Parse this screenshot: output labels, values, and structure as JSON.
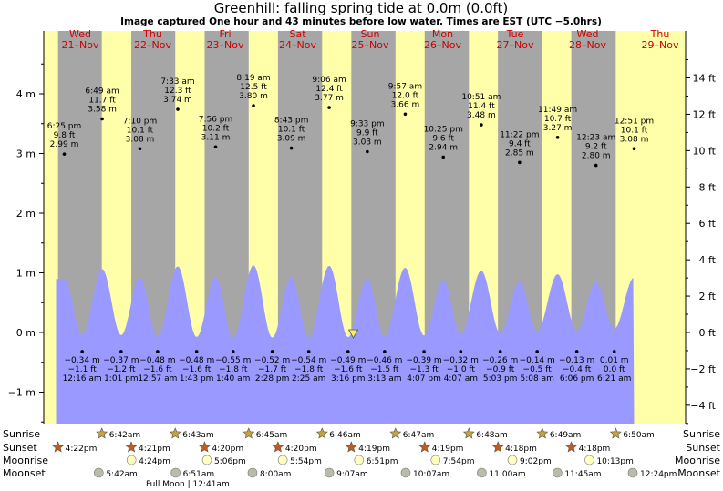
{
  "title": "Greenhill: falling  spring tide at 0.0m (0.0ft)",
  "subtitle": "Image captured One hour and 43 minutes before low water. Times are EST (UTC −5.0hrs)",
  "days": [
    {
      "dow": "Wed",
      "date": "21–Nov"
    },
    {
      "dow": "Thu",
      "date": "22–Nov"
    },
    {
      "dow": "Fri",
      "date": "23–Nov"
    },
    {
      "dow": "Sat",
      "date": "24–Nov"
    },
    {
      "dow": "Sun",
      "date": "25–Nov"
    },
    {
      "dow": "Mon",
      "date": "26–Nov"
    },
    {
      "dow": "Tue",
      "date": "27–Nov"
    },
    {
      "dow": "Wed",
      "date": "28–Nov"
    },
    {
      "dow": "Thu",
      "date": "29–Nov"
    }
  ],
  "axes": {
    "left_ticks": [
      "4 m",
      "3 m",
      "2 m",
      "1 m",
      "0 m",
      "−1 m"
    ],
    "left_values": [
      4,
      3,
      2,
      1,
      0,
      -1
    ],
    "right_ticks": [
      "14 ft",
      "12 ft",
      "10 ft",
      "8 ft",
      "6 ft",
      "4 ft",
      "2 ft",
      "0 ft",
      "−2 ft",
      "−4 ft"
    ],
    "right_values_ft": [
      14,
      12,
      10,
      8,
      6,
      4,
      2,
      0,
      -2,
      -4
    ],
    "ylim_m": [
      -1.5,
      4.7
    ]
  },
  "chart_data": {
    "type": "area",
    "title": "Greenhill: falling  spring tide at 0.0m (0.0ft)",
    "current_level_m": 0.0,
    "high_tides": [
      {
        "time": "6:25 pm",
        "ft": "9.8 ft",
        "m": 2.99,
        "label": "2.99 m"
      },
      {
        "time": "6:49 am",
        "ft": "11.7 ft",
        "m": 3.58,
        "label": "3.58 m"
      },
      {
        "time": "7:10 pm",
        "ft": "10.1 ft",
        "m": 3.08,
        "label": "3.08 m"
      },
      {
        "time": "7:33 am",
        "ft": "12.3 ft",
        "m": 3.74,
        "label": "3.74 m"
      },
      {
        "time": "7:56 pm",
        "ft": "10.2 ft",
        "m": 3.11,
        "label": "3.11 m"
      },
      {
        "time": "8:19 am",
        "ft": "12.5 ft",
        "m": 3.8,
        "label": "3.80 m"
      },
      {
        "time": "8:43 pm",
        "ft": "10.1 ft",
        "m": 3.09,
        "label": "3.09 m"
      },
      {
        "time": "9:06 am",
        "ft": "12.4 ft",
        "m": 3.77,
        "label": "3.77 m"
      },
      {
        "time": "9:33 pm",
        "ft": "9.9 ft",
        "m": 3.03,
        "label": "3.03 m"
      },
      {
        "time": "9:57 am",
        "ft": "12.0 ft",
        "m": 3.66,
        "label": "3.66 m"
      },
      {
        "time": "10:25 pm",
        "ft": "9.6 ft",
        "m": 2.94,
        "label": "2.94 m"
      },
      {
        "time": "10:51 am",
        "ft": "11.4 ft",
        "m": 3.48,
        "label": "3.48 m"
      },
      {
        "time": "11:22 pm",
        "ft": "9.4 ft",
        "m": 2.85,
        "label": "2.85 m"
      },
      {
        "time": "11:49 am",
        "ft": "10.7 ft",
        "m": 3.27,
        "label": "3.27 m"
      },
      {
        "time": "12:23 am",
        "ft": "9.2 ft",
        "m": 2.8,
        "label": "2.80 m"
      },
      {
        "time": "12:51 pm",
        "ft": "10.1 ft",
        "m": 3.08,
        "label": "3.08 m"
      }
    ],
    "low_tides": [
      {
        "m": -0.34,
        "label": "−0.34 m",
        "ft": "−1.1 ft",
        "time": "12:16 am"
      },
      {
        "m": -0.37,
        "label": "−0.37 m",
        "ft": "−1.2 ft",
        "time": "1:01 pm"
      },
      {
        "m": -0.48,
        "label": "−0.48 m",
        "ft": "−1.6 ft",
        "time": "12:57 am"
      },
      {
        "m": -0.48,
        "label": "−0.48 m",
        "ft": "−1.6 ft",
        "time": "1:43 pm"
      },
      {
        "m": -0.55,
        "label": "−0.55 m",
        "ft": "−1.8 ft",
        "time": "1:40 am"
      },
      {
        "m": -0.52,
        "label": "−0.52 m",
        "ft": "−1.7 ft",
        "time": "2:28 pm"
      },
      {
        "m": -0.54,
        "label": "−0.54 m",
        "ft": "−1.8 ft",
        "time": "2:25 am"
      },
      {
        "m": -0.49,
        "label": "−0.49 m",
        "ft": "−1.6 ft",
        "time": "3:16 pm"
      },
      {
        "m": -0.46,
        "label": "−0.46 m",
        "ft": "−1.5 ft",
        "time": "3:13 am"
      },
      {
        "m": -0.39,
        "label": "−0.39 m",
        "ft": "−1.3 ft",
        "time": "4:07 pm"
      },
      {
        "m": -0.32,
        "label": "−0.32 m",
        "ft": "−1.0 ft",
        "time": "4:07 am"
      },
      {
        "m": -0.26,
        "label": "−0.26 m",
        "ft": "−0.9 ft",
        "time": "5:03 pm"
      },
      {
        "m": -0.14,
        "label": "−0.14 m",
        "ft": "−0.5 ft",
        "time": "5:08 am"
      },
      {
        "m": -0.13,
        "label": "−0.13 m",
        "ft": "−0.4 ft",
        "time": "6:06 pm"
      },
      {
        "m": 0.01,
        "label": "0.01 m",
        "ft": "0.0 ft",
        "time": "6:21 am"
      }
    ]
  },
  "rows": {
    "sunrise_label": "Sunrise",
    "sunset_label": "Sunset",
    "moonrise_label": "Moonrise",
    "moonset_label": "Moonset",
    "sunrise": [
      "6:42am",
      "6:43am",
      "6:45am",
      "6:46am",
      "6:47am",
      "6:48am",
      "6:49am",
      "6:50am"
    ],
    "sunset": [
      "4:22pm",
      "4:21pm",
      "4:20pm",
      "4:20pm",
      "4:19pm",
      "4:19pm",
      "4:18pm",
      "4:18pm"
    ],
    "moonrise": [
      "4:24pm",
      "5:06pm",
      "5:54pm",
      "6:51pm",
      "7:54pm",
      "9:02pm",
      "10:13pm"
    ],
    "moonset": [
      "5:42am",
      "6:51am",
      "8:00am",
      "9:07am",
      "10:07am",
      "11:00am",
      "11:45am",
      "12:24pm"
    ],
    "moon_phase": "Full Moon | 12:41am"
  },
  "colors": {
    "day": "#ffffaa",
    "night": "#a6a6a6",
    "water": "#9999ff",
    "day_label": "#cc0000",
    "sun_star": "#c7a33a",
    "sunset_star": "#c85a14",
    "moon_light": "#ffffc0",
    "moon_dark": "#bbbbaa"
  }
}
